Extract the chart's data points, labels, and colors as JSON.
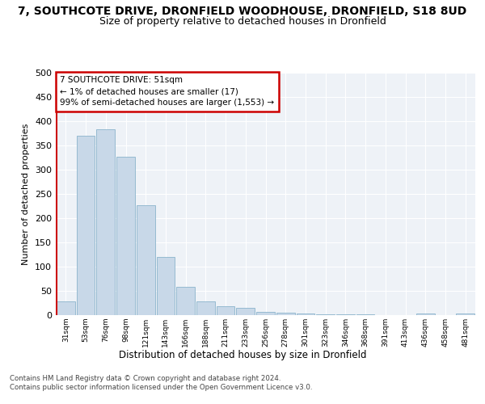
{
  "title": "7, SOUTHCOTE DRIVE, DRONFIELD WOODHOUSE, DRONFIELD, S18 8UD",
  "subtitle": "Size of property relative to detached houses in Dronfield",
  "xlabel": "Distribution of detached houses by size in Dronfield",
  "ylabel": "Number of detached properties",
  "bar_color": "#c8d8e8",
  "bar_edge_color": "#8ab4cc",
  "bar_values": [
    28,
    370,
    383,
    326,
    226,
    120,
    58,
    28,
    19,
    15,
    7,
    5,
    3,
    2,
    1,
    1,
    0,
    0,
    4,
    0,
    4
  ],
  "bin_labels": [
    "31sqm",
    "53sqm",
    "76sqm",
    "98sqm",
    "121sqm",
    "143sqm",
    "166sqm",
    "188sqm",
    "211sqm",
    "233sqm",
    "256sqm",
    "278sqm",
    "301sqm",
    "323sqm",
    "346sqm",
    "368sqm",
    "391sqm",
    "413sqm",
    "436sqm",
    "458sqm",
    "481sqm"
  ],
  "ylim": [
    0,
    500
  ],
  "yticks": [
    0,
    50,
    100,
    150,
    200,
    250,
    300,
    350,
    400,
    450,
    500
  ],
  "vline_color": "#cc0000",
  "annotation_box_text": "7 SOUTHCOTE DRIVE: 51sqm\n← 1% of detached houses are smaller (17)\n99% of semi-detached houses are larger (1,553) →",
  "footer_line1": "Contains HM Land Registry data © Crown copyright and database right 2024.",
  "footer_line2": "Contains public sector information licensed under the Open Government Licence v3.0.",
  "bg_color": "#eef2f7",
  "grid_color": "#ffffff",
  "title_fontsize": 10,
  "subtitle_fontsize": 9
}
